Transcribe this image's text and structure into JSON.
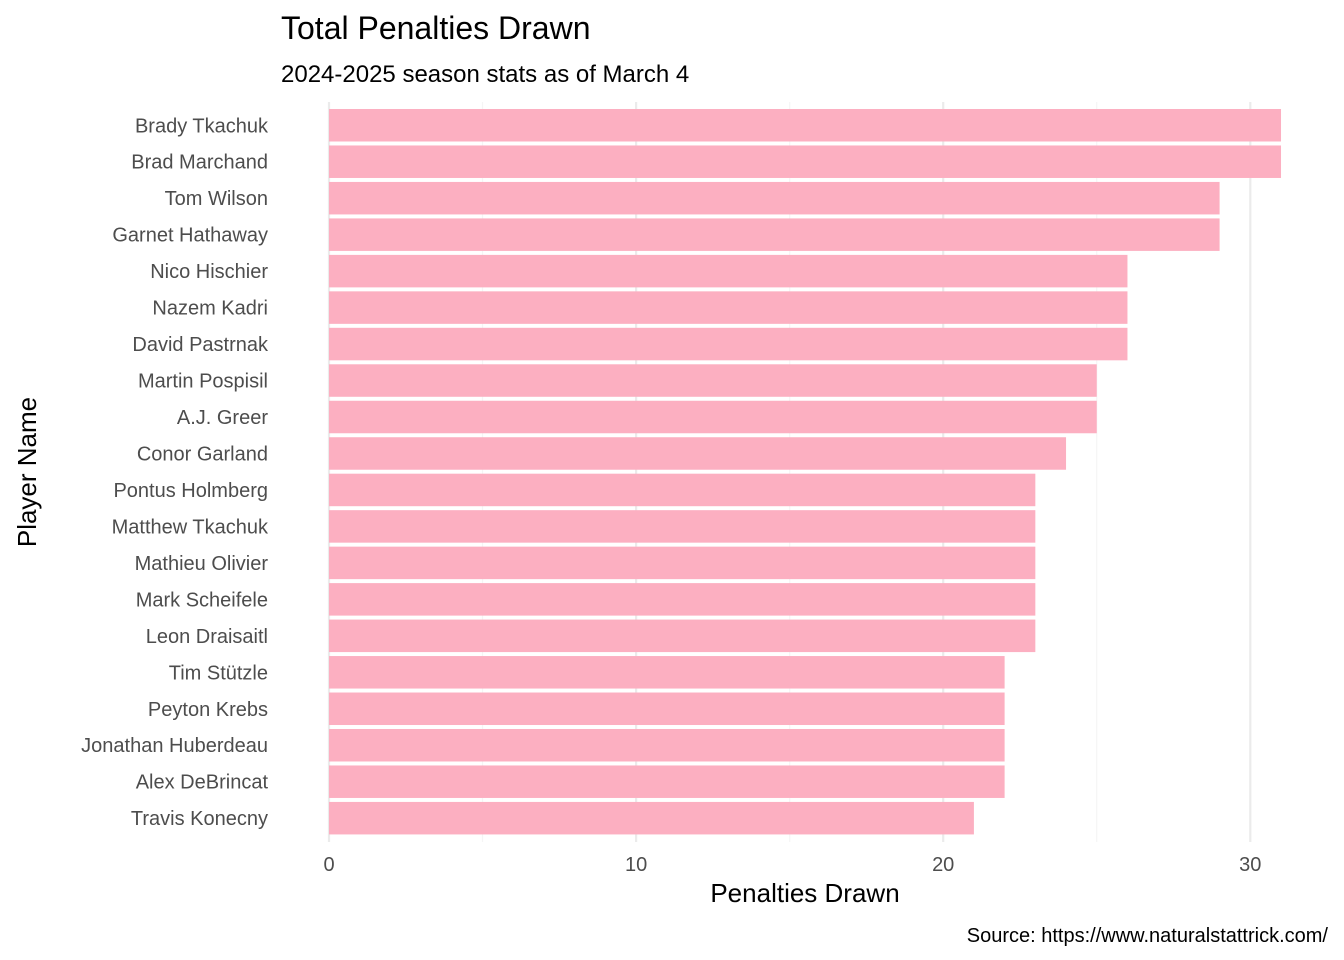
{
  "chart_data": {
    "type": "bar",
    "orientation": "horizontal",
    "title": "Total Penalties Drawn",
    "subtitle": "2024-2025 season stats as of March 4",
    "xlabel": "Penalties Drawn",
    "ylabel": "Player Name",
    "caption": "Source: https://www.naturalstattrick.com/",
    "categories": [
      "Brady Tkachuk",
      "Brad Marchand",
      "Tom Wilson",
      "Garnet Hathaway",
      "Nico Hischier",
      "Nazem Kadri",
      "David Pastrnak",
      "Martin Pospisil",
      "A.J. Greer",
      "Conor Garland",
      "Pontus Holmberg",
      "Matthew Tkachuk",
      "Mathieu Olivier",
      "Mark Scheifele",
      "Leon Draisaitl",
      "Tim Stützle",
      "Peyton Krebs",
      "Jonathan Huberdeau",
      "Alex DeBrincat",
      "Travis Konecny"
    ],
    "values": [
      31,
      31,
      29,
      29,
      26,
      26,
      26,
      25,
      25,
      24,
      23,
      23,
      23,
      23,
      23,
      22,
      22,
      22,
      22,
      21
    ],
    "xlim": [
      0,
      31
    ],
    "xticks": [
      0,
      10,
      20,
      30
    ],
    "bar_color": "#fcafc1",
    "grid": true
  }
}
